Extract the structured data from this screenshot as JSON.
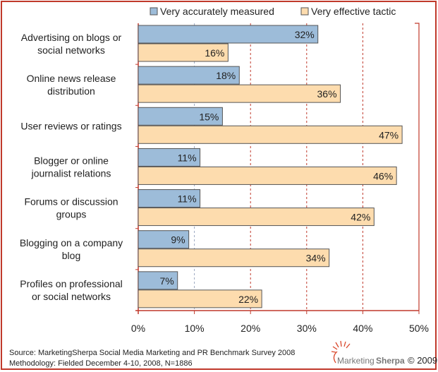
{
  "chart_data": {
    "type": "bar",
    "orientation": "horizontal",
    "categories": [
      [
        "Advertising on blogs or",
        "social networks"
      ],
      [
        "Online news release",
        "distribution"
      ],
      [
        "User reviews or ratings"
      ],
      [
        "Blogger or online",
        "journalist relations"
      ],
      [
        "Forums or discussion",
        "groups"
      ],
      [
        "Blogging on a company",
        "blog"
      ],
      [
        "Profiles on professional",
        "or social networks"
      ]
    ],
    "series": [
      {
        "name": "Very accurately measured",
        "color": "#9dbcd9",
        "values": [
          32,
          18,
          15,
          11,
          11,
          9,
          7
        ],
        "labels": [
          "32%",
          "18%",
          "15%",
          "11%",
          "11%",
          "9%",
          "7%"
        ]
      },
      {
        "name": "Very effective tactic",
        "color": "#fddcae",
        "values": [
          16,
          36,
          47,
          46,
          42,
          34,
          22
        ],
        "labels": [
          "16%",
          "36%",
          "47%",
          "46%",
          "42%",
          "34%",
          "22%"
        ]
      }
    ],
    "xlim": [
      0,
      50
    ],
    "xticks": [
      "0%",
      "10%",
      "20%",
      "30%",
      "40%",
      "50%"
    ],
    "grid": true,
    "legend": "top",
    "frame_color": "#c0392b"
  },
  "footer": {
    "source": "Source: MarketingSherpa Social Media Marketing and PR Benchmark Survey 2008",
    "methodology": "Methodology: Fielded December 4-10, 2008, N=1886",
    "logo_a": "Marketing",
    "logo_b": "Sherpa",
    "copyright": "© 2009"
  }
}
